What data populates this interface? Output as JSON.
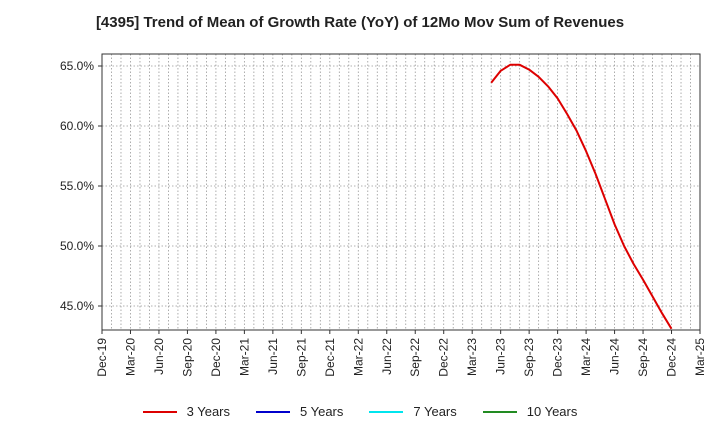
{
  "chart_data": {
    "type": "line",
    "title": "[4395]  Trend of Mean of Growth Rate (YoY) of 12Mo Mov Sum of Revenues",
    "xlabel": "",
    "ylabel": "",
    "ylim": [
      43.0,
      66.0
    ],
    "y_ticks": [
      45.0,
      50.0,
      55.0,
      60.0,
      65.0
    ],
    "y_tick_labels": [
      "45.0%",
      "50.0%",
      "55.0%",
      "60.0%",
      "65.0%"
    ],
    "x_tick_labels": [
      "Dec-19",
      "Mar-20",
      "Jun-20",
      "Sep-20",
      "Dec-20",
      "Mar-21",
      "Jun-21",
      "Sep-21",
      "Dec-21",
      "Mar-22",
      "Jun-22",
      "Sep-22",
      "Dec-22",
      "Mar-23",
      "Jun-23",
      "Sep-23",
      "Dec-23",
      "Mar-24",
      "Jun-24",
      "Sep-24",
      "Dec-24",
      "Mar-25"
    ],
    "x_month_start": "Dec-19",
    "x_month_end": "Mar-25",
    "grid": true,
    "legend_position": "bottom",
    "series": [
      {
        "name": "3 Years",
        "color": "#dd0000",
        "x": [
          "May-23",
          "Jun-23",
          "Jul-23",
          "Aug-23",
          "Sep-23",
          "Oct-23",
          "Nov-23",
          "Dec-23",
          "Jan-24",
          "Feb-24",
          "Mar-24",
          "Apr-24",
          "May-24",
          "Jun-24",
          "Jul-24",
          "Aug-24",
          "Sep-24",
          "Oct-24",
          "Nov-24",
          "Dec-24"
        ],
        "values": [
          63.6,
          64.6,
          65.1,
          65.1,
          64.7,
          64.1,
          63.3,
          62.3,
          61.0,
          59.6,
          57.9,
          56.0,
          53.9,
          51.8,
          50.0,
          48.5,
          47.2,
          45.8,
          44.4,
          43.1
        ]
      },
      {
        "name": "5 Years",
        "color": "#0000cc",
        "x": [],
        "values": []
      },
      {
        "name": "7 Years",
        "color": "#00e5ee",
        "x": [],
        "values": []
      },
      {
        "name": "10 Years",
        "color": "#228b22",
        "x": [],
        "values": []
      }
    ]
  }
}
